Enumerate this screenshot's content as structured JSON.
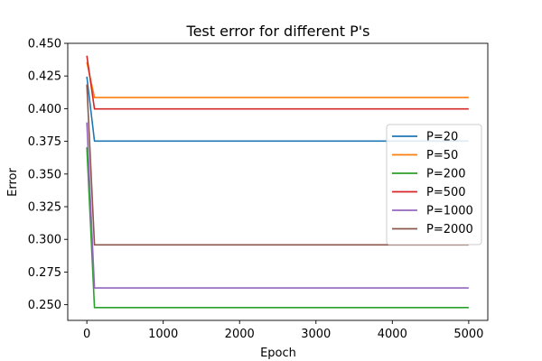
{
  "chart_data": {
    "type": "line",
    "title": "Test error for different P's",
    "xlabel": "Epoch",
    "ylabel": "Error",
    "xlim": [
      -250,
      5250
    ],
    "ylim": [
      0.238,
      0.45
    ],
    "xticks": [
      0,
      1000,
      2000,
      3000,
      4000,
      5000
    ],
    "xtick_labels": [
      "0",
      "1000",
      "2000",
      "3000",
      "4000",
      "5000"
    ],
    "yticks": [
      0.25,
      0.275,
      0.3,
      0.325,
      0.35,
      0.375,
      0.4,
      0.425,
      0.45
    ],
    "ytick_labels": [
      "0.250",
      "0.275",
      "0.300",
      "0.325",
      "0.350",
      "0.375",
      "0.400",
      "0.425",
      "0.450"
    ],
    "grid": false,
    "legend_position": "center-right",
    "series": [
      {
        "name": "P=20",
        "color": "#1f77b4",
        "x": [
          0,
          100,
          5000
        ],
        "y": [
          0.4245,
          0.3752,
          0.3752
        ]
      },
      {
        "name": "P=50",
        "color": "#ff7f0e",
        "x": [
          0,
          100,
          5000
        ],
        "y": [
          0.4355,
          0.4085,
          0.4085
        ]
      },
      {
        "name": "P=200",
        "color": "#2ca02c",
        "x": [
          0,
          100,
          5000
        ],
        "y": [
          0.3705,
          0.2478,
          0.2478
        ]
      },
      {
        "name": "P=500",
        "color": "#d62728",
        "x": [
          0,
          100,
          5000
        ],
        "y": [
          0.4405,
          0.3998,
          0.3998
        ]
      },
      {
        "name": "P=1000",
        "color": "#9467bd",
        "x": [
          0,
          100,
          5000
        ],
        "y": [
          0.3895,
          0.2628,
          0.2628
        ]
      },
      {
        "name": "P=2000",
        "color": "#8c564b",
        "x": [
          0,
          100,
          5000
        ],
        "y": [
          0.4185,
          0.2958,
          0.2958
        ]
      }
    ]
  }
}
